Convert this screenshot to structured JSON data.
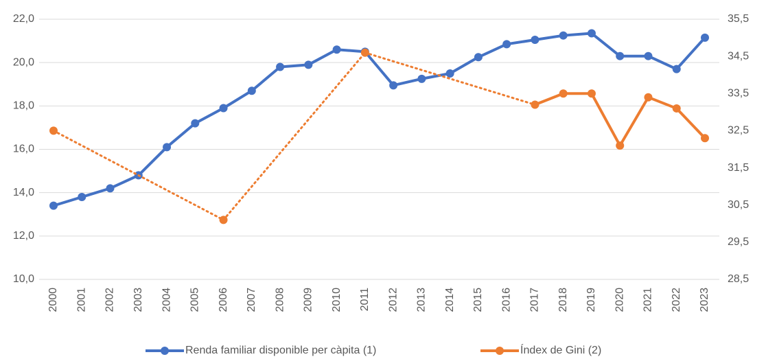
{
  "chart_data": {
    "type": "line",
    "categories": [
      "2000",
      "2001",
      "2002",
      "2003",
      "2004",
      "2005",
      "2006",
      "2007",
      "2008",
      "2009",
      "2010",
      "2011",
      "2012",
      "2013",
      "2014",
      "2015",
      "2016",
      "2017",
      "2018",
      "2019",
      "2020",
      "2021",
      "2022",
      "2023"
    ],
    "series": [
      {
        "name": "Renda familiar disponible per càpita (1)",
        "color": "#4472c4",
        "values": [
          13.4,
          13.8,
          14.2,
          14.8,
          16.1,
          17.2,
          17.9,
          18.7,
          19.8,
          19.9,
          20.6,
          20.5,
          18.95,
          19.25,
          19.5,
          20.25,
          20.85,
          21.05,
          21.25,
          21.35,
          20.3,
          20.3,
          19.7,
          21.15
        ]
      },
      {
        "name": "Índex de Gini (2)",
        "color": "#ed7d31",
        "axis": "y2",
        "values": [
          32.5,
          null,
          null,
          null,
          null,
          null,
          30.1,
          null,
          null,
          null,
          null,
          34.6,
          null,
          null,
          null,
          null,
          null,
          33.2,
          33.5,
          33.5,
          32.1,
          33.4,
          33.1,
          32.3
        ]
      }
    ],
    "ylim": [
      10,
      22
    ],
    "yticks": [
      {
        "value": 10,
        "label": "10,0"
      },
      {
        "value": 12,
        "label": "12,0"
      },
      {
        "value": 14,
        "label": "14,0"
      },
      {
        "value": 16,
        "label": "16,0"
      },
      {
        "value": 18,
        "label": "18,0"
      },
      {
        "value": 20,
        "label": "20,0"
      },
      {
        "value": 22,
        "label": "22,0"
      }
    ],
    "y2lim": [
      28.5,
      35.5
    ],
    "y2ticks": [
      {
        "value": 28.5,
        "label": "28,5"
      },
      {
        "value": 29.5,
        "label": "29,5"
      },
      {
        "value": 30.5,
        "label": "30,5"
      },
      {
        "value": 31.5,
        "label": "31,5"
      },
      {
        "value": 32.5,
        "label": "32,5"
      },
      {
        "value": 33.5,
        "label": "33,5"
      },
      {
        "value": 34.5,
        "label": "34,5"
      },
      {
        "value": 35.5,
        "label": "35,5"
      }
    ],
    "grid": true,
    "legend": "bottom"
  }
}
